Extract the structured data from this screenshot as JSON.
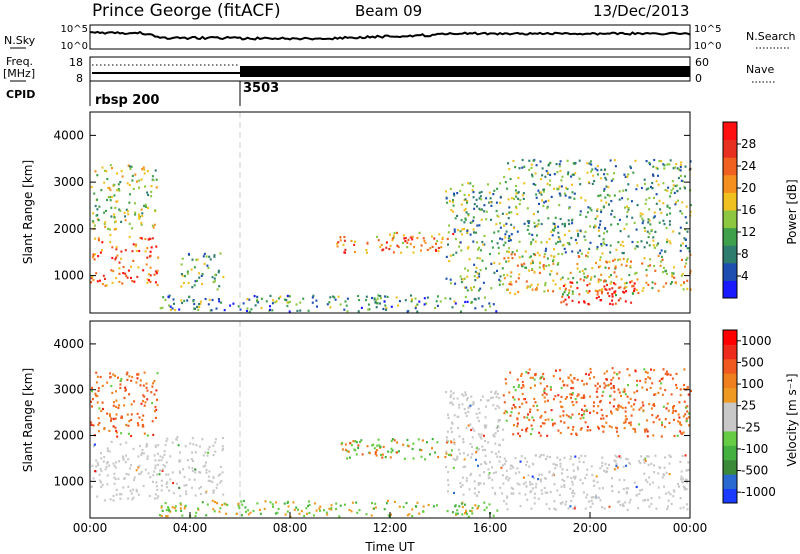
{
  "header": {
    "station": "Prince George (fitACF)",
    "beam": "Beam 09",
    "date": "13/Dec/2013"
  },
  "noise_panel": {
    "left_label": "N.Sky",
    "right_label": "N.Search",
    "left_ticks": [
      "10^5",
      "10^0"
    ],
    "right_ticks": [
      "10^5",
      "10^0"
    ]
  },
  "freq_panel": {
    "left_label_1": "Freq.",
    "left_label_2": "[MHz]",
    "right_label": "Nave",
    "left_ticks": [
      "18",
      "8"
    ],
    "right_ticks": [
      "60",
      "0"
    ]
  },
  "cpid_panel": {
    "label": "CPID",
    "segments": [
      {
        "name": "rbsp 200",
        "start_hour": 0
      },
      {
        "name": "3503",
        "start_hour": 6
      }
    ]
  },
  "chart_data": [
    {
      "type": "heatmap",
      "quantity": "power",
      "ylabel": "Slant Range [km]",
      "xlabel": "",
      "ylim": [
        200,
        4500
      ],
      "yticks": [
        "1000",
        "2000",
        "3000",
        "4000"
      ],
      "colorbar": {
        "label": "Power [dB]",
        "ticks": [
          "4",
          "8",
          "12",
          "16",
          "20",
          "24",
          "28"
        ],
        "colors": [
          "#1a1aff",
          "#1e4fb0",
          "#2e7c6e",
          "#3ea04a",
          "#8cc73f",
          "#f0c020",
          "#f5901e",
          "#f0601e",
          "#e83020",
          "#ff1010"
        ]
      },
      "regions": [
        {
          "t0": 0.0,
          "t1": 2.7,
          "r0": 800,
          "r1": 1900,
          "level": 0.75
        },
        {
          "t0": 0.0,
          "t1": 2.7,
          "r0": 2000,
          "r1": 3400,
          "level": 0.45
        },
        {
          "t0": 3.6,
          "t1": 5.3,
          "r0": 700,
          "r1": 1500,
          "level": 0.35
        },
        {
          "t0": 2.7,
          "t1": 16.3,
          "r0": 250,
          "r1": 600,
          "level": 0.3
        },
        {
          "t0": 9.8,
          "t1": 14.6,
          "r0": 1500,
          "r1": 1950,
          "level": 0.7
        },
        {
          "t0": 14.2,
          "t1": 16.5,
          "r0": 700,
          "r1": 3000,
          "level": 0.35
        },
        {
          "t0": 16.5,
          "t1": 24.0,
          "r0": 600,
          "r1": 1500,
          "level": 0.55
        },
        {
          "t0": 16.5,
          "t1": 24.0,
          "r0": 1500,
          "r1": 3500,
          "level": 0.35
        },
        {
          "t0": 18.8,
          "t1": 21.8,
          "r0": 400,
          "r1": 900,
          "level": 0.95
        }
      ]
    },
    {
      "type": "heatmap",
      "quantity": "velocity",
      "ylabel": "Slant Range [km]",
      "xlabel": "Time UT",
      "ylim": [
        200,
        4500
      ],
      "yticks": [
        "1000",
        "2000",
        "3000",
        "4000"
      ],
      "xlim": [
        0,
        24
      ],
      "xticks": [
        "00:00",
        "04:00",
        "08:00",
        "12:00",
        "16:00",
        "20:00",
        "00:00"
      ],
      "colorbar": {
        "label": "Velocity [m s⁻¹]",
        "ticks": [
          "1000",
          "500",
          "100",
          "25",
          "-25",
          "-100",
          "-500",
          "-1000"
        ],
        "colors": [
          "#1a3aff",
          "#2a6ad0",
          "#3a8a3a",
          "#44b040",
          "#66cc44",
          "#c8c8c8",
          "#c8c8c8",
          "#ee9a20",
          "#f0801e",
          "#f05a1e",
          "#ee2a1a",
          "#ff0000"
        ]
      },
      "regions": [
        {
          "t0": 0.0,
          "t1": 2.7,
          "r0": 600,
          "r1": 1900,
          "class": "ground"
        },
        {
          "t0": 0.0,
          "t1": 2.7,
          "r0": 2000,
          "r1": 3400,
          "class": "away"
        },
        {
          "t0": 2.5,
          "t1": 5.3,
          "r0": 700,
          "r1": 2000,
          "class": "ground"
        },
        {
          "t0": 2.7,
          "t1": 16.3,
          "r0": 250,
          "r1": 600,
          "class": "towards_slow"
        },
        {
          "t0": 9.8,
          "t1": 14.6,
          "r0": 1500,
          "r1": 1950,
          "class": "mixed"
        },
        {
          "t0": 14.2,
          "t1": 16.5,
          "r0": 700,
          "r1": 3000,
          "class": "ground"
        },
        {
          "t0": 16.5,
          "t1": 24.0,
          "r0": 400,
          "r1": 1600,
          "class": "ground"
        },
        {
          "t0": 16.5,
          "t1": 24.0,
          "r0": 2000,
          "r1": 3500,
          "class": "away"
        }
      ]
    }
  ]
}
